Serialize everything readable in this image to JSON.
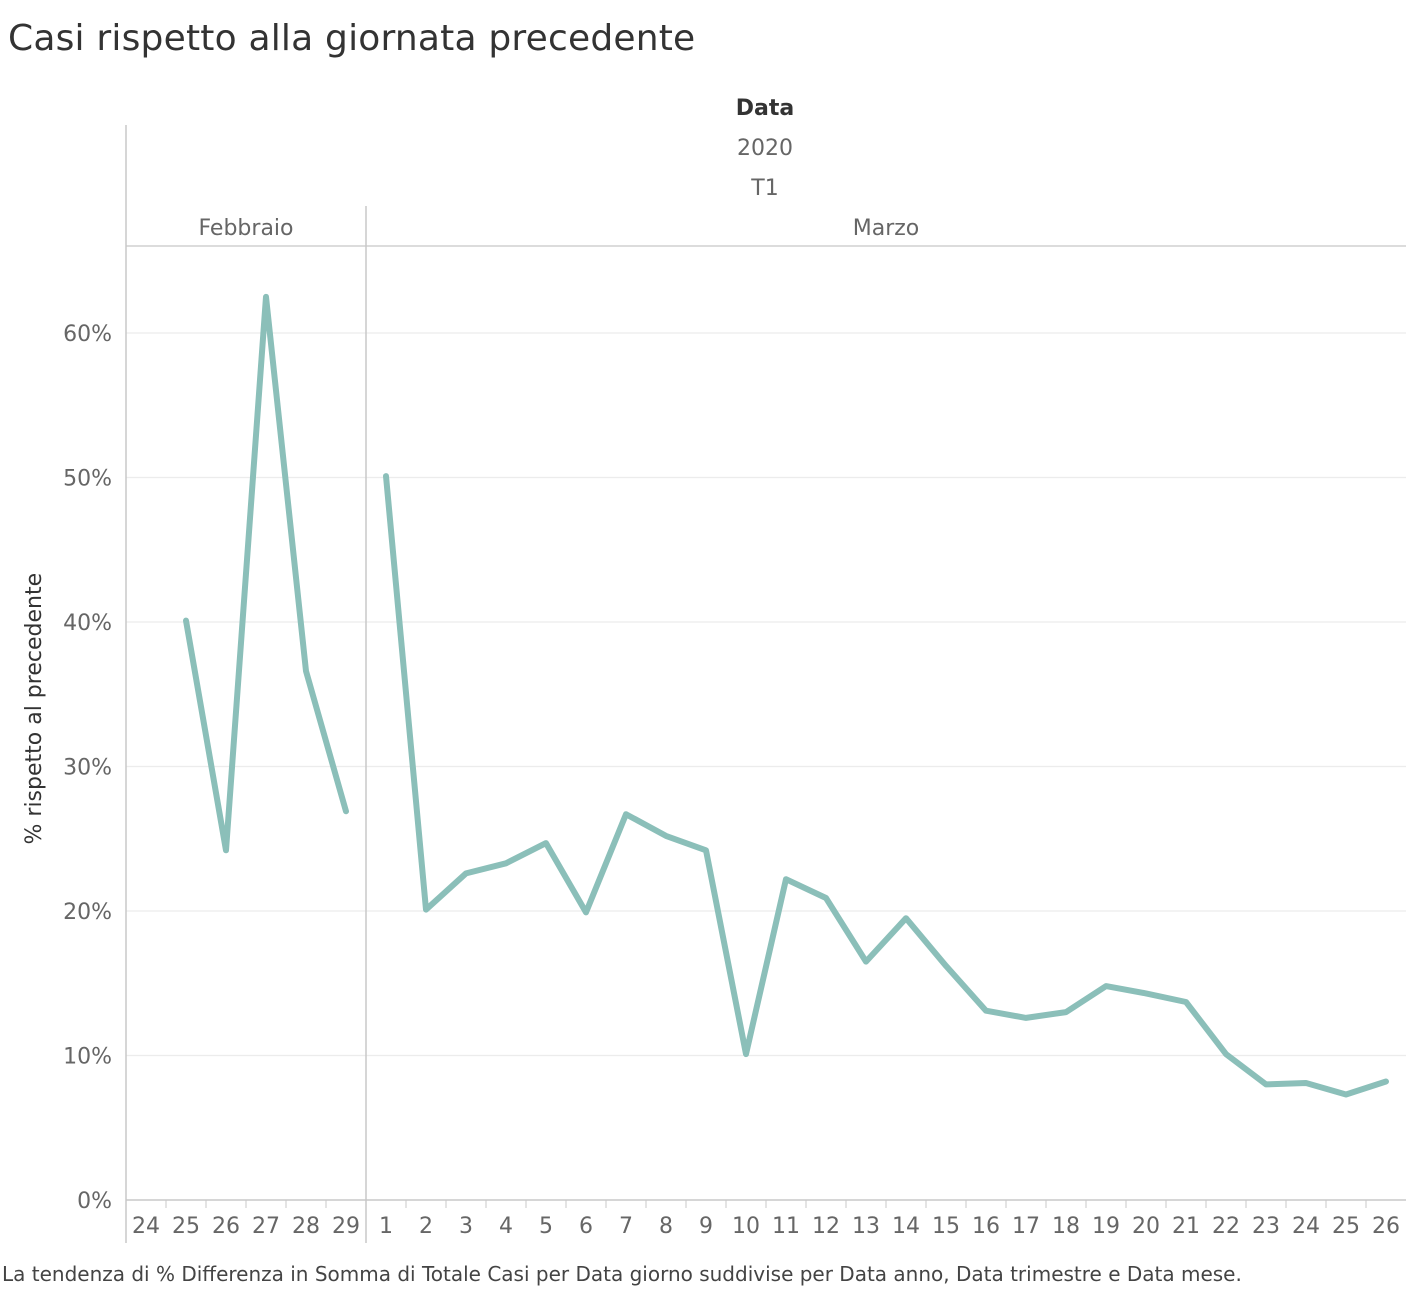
{
  "title": "Casi rispetto alla giornata precedente",
  "caption": "La tendenza di % Differenza in Somma di Totale Casi per Data giorno suddivise per Data anno, Data trimestre e Data mese.",
  "colors": {
    "line": "#8bbfb9",
    "grid": "#ececec",
    "axis": "#c8c8c8",
    "text": "#666666"
  },
  "chart_data": {
    "type": "line",
    "header": {
      "field": "Data",
      "year": "2020",
      "quarter": "T1"
    },
    "months": [
      {
        "name": "Febbraio",
        "days": [
          "24",
          "25",
          "26",
          "27",
          "28",
          "29"
        ]
      },
      {
        "name": "Marzo",
        "days": [
          "1",
          "2",
          "3",
          "4",
          "5",
          "6",
          "7",
          "8",
          "9",
          "10",
          "11",
          "12",
          "13",
          "14",
          "15",
          "16",
          "17",
          "18",
          "19",
          "20",
          "21",
          "22",
          "23",
          "24",
          "25",
          "26"
        ]
      }
    ],
    "ylabel": "% rispetto al precedente",
    "ylim": [
      0,
      0.66
    ],
    "yticks": [
      {
        "value": 0,
        "label": "0%"
      },
      {
        "value": 0.1,
        "label": "10%"
      },
      {
        "value": 0.2,
        "label": "20%"
      },
      {
        "value": 0.3,
        "label": "30%"
      },
      {
        "value": 0.4,
        "label": "40%"
      },
      {
        "value": 0.5,
        "label": "50%"
      },
      {
        "value": 0.6,
        "label": "60%"
      }
    ],
    "series": [
      {
        "segments": [
          {
            "month": "Febbraio",
            "points": [
              [
                "25",
                0.401
              ],
              [
                "26",
                0.242
              ],
              [
                "27",
                0.625
              ],
              [
                "28",
                0.366
              ],
              [
                "29",
                0.269
              ]
            ]
          },
          {
            "month": "Marzo",
            "points": [
              [
                "1",
                0.501
              ],
              [
                "2",
                0.201
              ],
              [
                "3",
                0.226
              ],
              [
                "4",
                0.233
              ],
              [
                "5",
                0.247
              ],
              [
                "6",
                0.199
              ],
              [
                "7",
                0.267
              ],
              [
                "8",
                0.252
              ],
              [
                "9",
                0.242
              ],
              [
                "10",
                0.101
              ],
              [
                "11",
                0.222
              ],
              [
                "12",
                0.209
              ],
              [
                "13",
                0.165
              ],
              [
                "14",
                0.195
              ],
              [
                "15",
                0.162
              ],
              [
                "16",
                0.131
              ],
              [
                "17",
                0.126
              ],
              [
                "18",
                0.13
              ],
              [
                "19",
                0.148
              ],
              [
                "20",
                0.143
              ],
              [
                "21",
                0.137
              ],
              [
                "22",
                0.101
              ],
              [
                "23",
                0.08
              ],
              [
                "24",
                0.081
              ],
              [
                "25",
                0.073
              ],
              [
                "26",
                0.082
              ]
            ]
          }
        ]
      }
    ]
  }
}
